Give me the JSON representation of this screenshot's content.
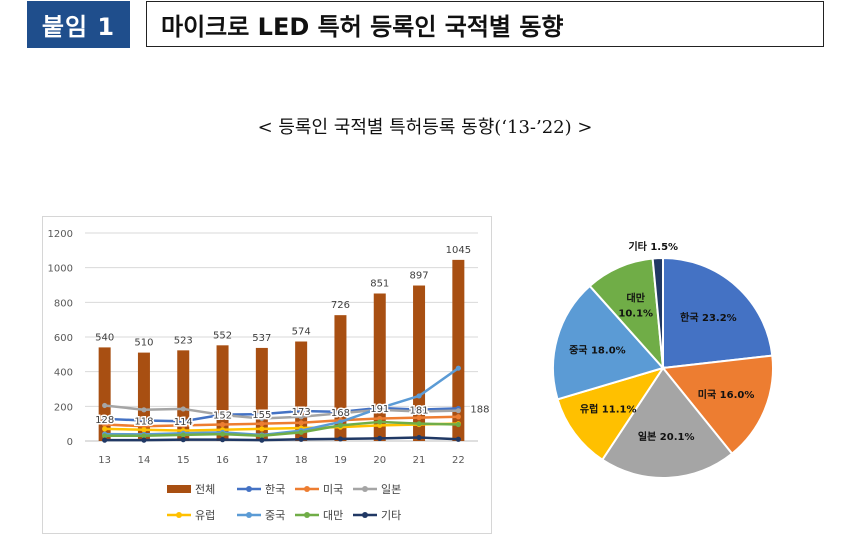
{
  "header": {
    "badge": "붙임 1",
    "title": "마이크로 LED 특허 등록인 국적별 동향"
  },
  "subtitle": "< 등록인 국적별 특허등록 동향(‘13-’22) >",
  "chart_data": [
    {
      "type": "bar",
      "title": "",
      "categories": [
        "13",
        "14",
        "15",
        "16",
        "17",
        "18",
        "19",
        "20",
        "21",
        "22"
      ],
      "ylim": [
        0,
        1200
      ],
      "yticks": [
        0,
        200,
        400,
        600,
        800,
        1000,
        1200
      ],
      "grid": true,
      "legend_position": "bottom",
      "series": [
        {
          "name": "전체",
          "kind": "bar",
          "color": "#a84f12",
          "values": [
            540,
            510,
            523,
            552,
            537,
            574,
            726,
            851,
            897,
            1045
          ]
        },
        {
          "name": "한국",
          "kind": "line",
          "color": "#4472c4",
          "values": [
            128,
            118,
            114,
            152,
            155,
            173,
            168,
            191,
            181,
            188
          ]
        },
        {
          "name": "미국",
          "kind": "line",
          "color": "#ed7d31",
          "values": [
            95,
            85,
            90,
            95,
            100,
            105,
            120,
            130,
            135,
            140
          ]
        },
        {
          "name": "일본",
          "kind": "line",
          "color": "#a5a5a5",
          "values": [
            205,
            180,
            185,
            150,
            130,
            140,
            160,
            180,
            170,
            175
          ]
        },
        {
          "name": "유럽",
          "kind": "line",
          "color": "#ffc000",
          "values": [
            70,
            65,
            60,
            65,
            70,
            75,
            80,
            90,
            95,
            100
          ]
        },
        {
          "name": "중국",
          "kind": "line",
          "color": "#5b9bd5",
          "values": [
            40,
            38,
            45,
            50,
            35,
            60,
            110,
            190,
            260,
            420
          ]
        },
        {
          "name": "대만",
          "kind": "line",
          "color": "#70ad47",
          "values": [
            30,
            30,
            35,
            40,
            30,
            50,
            90,
            110,
            100,
            95
          ]
        },
        {
          "name": "기타",
          "kind": "line",
          "color": "#203864",
          "values": [
            5,
            5,
            8,
            8,
            5,
            10,
            12,
            15,
            20,
            10
          ]
        }
      ],
      "data_labels": {
        "전체": [
          "540",
          "510",
          "523",
          "552",
          "537",
          "574",
          "726",
          "851",
          "897",
          "1045"
        ],
        "한국": [
          "128",
          "118",
          "114",
          "152",
          "155",
          "173",
          "168",
          "191",
          "181",
          "188"
        ]
      }
    },
    {
      "type": "pie",
      "title": "",
      "slices": [
        {
          "label": "한국",
          "value": 23.2,
          "text": "한국 23.2%",
          "color": "#4472c4"
        },
        {
          "label": "미국",
          "value": 16.0,
          "text": "미국 16.0%",
          "color": "#ed7d31"
        },
        {
          "label": "일본",
          "value": 20.1,
          "text": "일본 20.1%",
          "color": "#a5a5a5"
        },
        {
          "label": "유럽",
          "value": 11.1,
          "text": "유럽 11.1%",
          "color": "#ffc000"
        },
        {
          "label": "중국",
          "value": 18.0,
          "text": "중국 18.0%",
          "color": "#5b9bd5"
        },
        {
          "label": "대만",
          "value": 10.1,
          "text": "대만\n10.1%",
          "color": "#70ad47"
        },
        {
          "label": "기타",
          "value": 1.5,
          "text": "기타 1.5%",
          "color": "#203864"
        }
      ]
    }
  ]
}
